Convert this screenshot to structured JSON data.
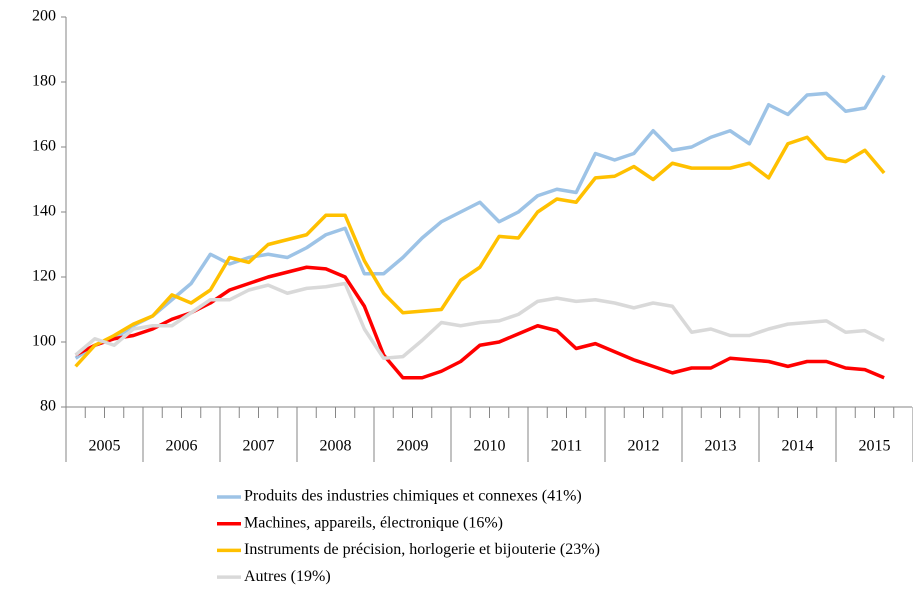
{
  "chart_data": {
    "type": "line",
    "categories": [
      null,
      "2005",
      null,
      null,
      null,
      "2006",
      null,
      null,
      null,
      "2007",
      null,
      null,
      null,
      "2008",
      null,
      null,
      null,
      "2009",
      null,
      null,
      null,
      "2010",
      null,
      null,
      null,
      "2011",
      null,
      null,
      null,
      "2012",
      null,
      null,
      null,
      "2013",
      null,
      null,
      null,
      "2014",
      null,
      null,
      null,
      "2015",
      null
    ],
    "series": [
      {
        "name": "Produits des industries chimiques et connexes (41%)",
        "color": "#9dc3e6",
        "values": [
          95,
          99,
          101,
          105,
          108,
          113,
          118,
          127,
          124,
          126,
          127,
          126,
          129,
          133,
          135,
          121,
          121,
          126,
          132,
          137,
          140,
          143,
          137,
          140,
          145,
          147,
          146,
          158,
          156,
          158,
          165,
          159,
          160,
          163,
          165,
          161,
          173,
          170,
          176,
          176.5,
          171,
          172,
          182
        ]
      },
      {
        "name": "Machines, appareils, électronique (16%)",
        "color": "#ff0000",
        "values": [
          96,
          99,
          101,
          102,
          104,
          107,
          109,
          112,
          116,
          118,
          120,
          121.5,
          123,
          122.5,
          120,
          111,
          96,
          89,
          89,
          91,
          94,
          99,
          100,
          102.5,
          105,
          103.5,
          98,
          99.5,
          97,
          94.5,
          92.5,
          90.5,
          92,
          92,
          95,
          94.5,
          94,
          92.5,
          94,
          94,
          92,
          91.5,
          89
        ]
      },
      {
        "name": "Instruments de précision, horlogerie et bijouterie (23%)",
        "color": "#ffc000",
        "values": [
          92.5,
          99,
          102,
          105.5,
          108,
          114.5,
          112,
          116,
          126,
          124.5,
          130,
          131.5,
          133,
          139,
          139,
          125,
          115,
          109,
          109.5,
          110,
          119,
          123,
          132.5,
          132,
          140,
          144,
          143,
          150.5,
          151,
          154,
          150,
          155,
          153.5,
          153.5,
          153.5,
          155,
          150.5,
          161,
          163,
          156.5,
          155.5,
          159,
          152
        ]
      },
      {
        "name": "Autres (19%)",
        "color": "#d9d9d9",
        "values": [
          96,
          101,
          99,
          104,
          105,
          105,
          109,
          113,
          113,
          116,
          117.5,
          115,
          116.5,
          117,
          118,
          104,
          95,
          95.5,
          100.5,
          106,
          105,
          106,
          106.5,
          108.5,
          112.5,
          113.5,
          112.5,
          113,
          112,
          110.5,
          112,
          111,
          103,
          104,
          102,
          102,
          104,
          105.5,
          106,
          106.5,
          103,
          103.5,
          100.5
        ]
      }
    ],
    "ylim": [
      80,
      200
    ],
    "yticks": [
      80,
      100,
      120,
      140,
      160,
      180,
      200
    ]
  }
}
